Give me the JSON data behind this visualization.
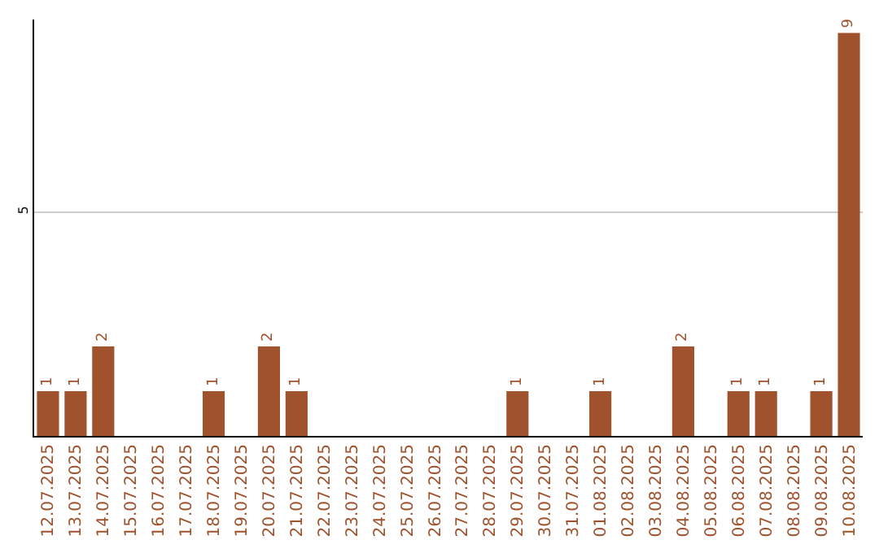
{
  "chart_data": {
    "type": "bar",
    "categories": [
      "12.07.2025",
      "13.07.2025",
      "14.07.2025",
      "15.07.2025",
      "16.07.2025",
      "17.07.2025",
      "18.07.2025",
      "19.07.2025",
      "20.07.2025",
      "21.07.2025",
      "22.07.2025",
      "23.07.2025",
      "24.07.2025",
      "25.07.2025",
      "26.07.2025",
      "27.07.2025",
      "28.07.2025",
      "29.07.2025",
      "30.07.2025",
      "31.07.2025",
      "01.08.2025",
      "02.08.2025",
      "03.08.2025",
      "04.08.2025",
      "05.08.2025",
      "06.08.2025",
      "07.08.2025",
      "08.08.2025",
      "09.08.2025",
      "10.08.2025"
    ],
    "values": [
      1,
      1,
      2,
      0,
      0,
      0,
      1,
      0,
      2,
      1,
      0,
      0,
      0,
      0,
      0,
      0,
      0,
      1,
      0,
      0,
      1,
      0,
      0,
      2,
      0,
      1,
      1,
      0,
      1,
      9
    ],
    "value_labels": [
      "1",
      "1",
      "2",
      null,
      null,
      null,
      "1",
      null,
      "2",
      "1",
      null,
      null,
      null,
      null,
      null,
      null,
      null,
      "1",
      null,
      null,
      "1",
      null,
      null,
      "2",
      null,
      "1",
      "1",
      null,
      "1",
      "9"
    ],
    "color": "#a0522d",
    "ylim": [
      0,
      9.3
    ],
    "yticks": [
      5
    ],
    "grid": "y",
    "legend": false
  }
}
